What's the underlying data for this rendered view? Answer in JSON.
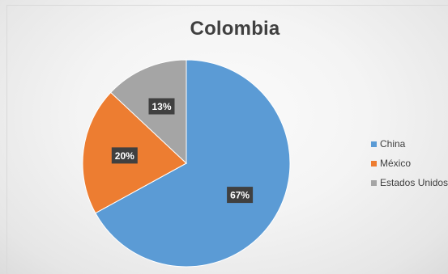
{
  "chart_data": {
    "type": "pie",
    "title": "Colombia",
    "categories": [
      "China",
      "México",
      "Estados Unidos"
    ],
    "values": [
      67,
      20,
      13
    ],
    "data_labels": [
      "67%",
      "20%",
      "13%"
    ],
    "colors": [
      "#5b9bd5",
      "#ed7d31",
      "#a5a5a5"
    ],
    "legend_position": "right",
    "legend": [
      "China",
      "México",
      "Estados Unidos"
    ]
  }
}
